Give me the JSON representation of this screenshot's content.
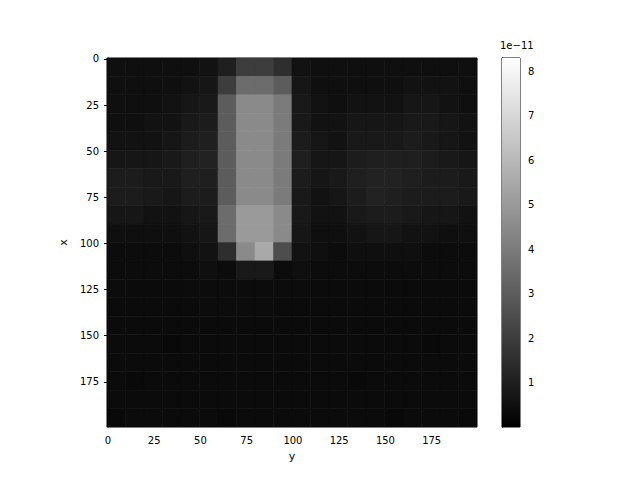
{
  "chart_data": {
    "type": "heatmap",
    "xlabel": "y",
    "ylabel": "x",
    "xlim": [
      -0.5,
      199.5
    ],
    "xticks": [
      0,
      25,
      50,
      75,
      100,
      125,
      150,
      175
    ],
    "ylim": [
      199.5,
      -0.5
    ],
    "yticks": [
      0,
      25,
      50,
      75,
      100,
      125,
      150,
      175
    ],
    "color": "gray",
    "colorbar_lim": [
      0,
      8.3
    ],
    "colorbar_ticks": [
      1,
      2,
      3,
      4,
      5,
      6,
      7,
      8
    ],
    "colorbar_offset_text": "1e−11",
    "heatmap": {
      "y_edges": [
        -0.5,
        9.5,
        19.5,
        29.5,
        39.5,
        49.5,
        59.5,
        69.5,
        79.5,
        89.5,
        99.5,
        109.5,
        119.5,
        129.5,
        139.5,
        149.5,
        159.5,
        169.5,
        179.5,
        189.5,
        199.5
      ],
      "x_edges": [
        -0.5,
        9.5,
        19.5,
        29.5,
        39.5,
        49.5,
        59.5,
        69.5,
        79.5,
        89.5,
        99.5,
        109.5,
        119.5,
        129.5,
        139.5,
        149.5,
        159.5,
        169.5,
        179.5,
        189.5,
        199.5
      ],
      "cells": [
        [
          0.5,
          0.5,
          0.5,
          0.5,
          0.5,
          0.6,
          1.0,
          2.0,
          2.0,
          1.5,
          0.6,
          0.5,
          0.5,
          0.5,
          0.5,
          0.5,
          0.5,
          0.5,
          0.5,
          0.5
        ],
        [
          0.5,
          0.5,
          0.5,
          0.5,
          0.6,
          0.7,
          2.0,
          3.5,
          3.5,
          3.0,
          0.7,
          0.5,
          0.5,
          0.5,
          0.5,
          0.5,
          0.6,
          0.6,
          0.6,
          0.5
        ],
        [
          0.5,
          0.5,
          0.5,
          0.6,
          0.7,
          0.8,
          3.0,
          4.5,
          4.5,
          4.0,
          0.8,
          0.6,
          0.5,
          0.6,
          0.6,
          0.6,
          0.7,
          0.7,
          0.6,
          0.5
        ],
        [
          0.5,
          0.5,
          0.6,
          0.6,
          0.8,
          0.9,
          3.0,
          4.5,
          4.5,
          4.0,
          0.8,
          0.6,
          0.6,
          0.7,
          0.7,
          0.7,
          0.8,
          0.8,
          0.7,
          0.6
        ],
        [
          0.6,
          0.6,
          0.6,
          0.7,
          0.9,
          1.0,
          3.0,
          4.5,
          4.5,
          4.0,
          0.9,
          0.7,
          0.6,
          0.8,
          0.8,
          0.8,
          0.9,
          0.8,
          0.7,
          0.6
        ],
        [
          0.7,
          0.7,
          0.7,
          0.8,
          1.0,
          1.1,
          3.0,
          4.5,
          4.5,
          4.0,
          1.0,
          0.7,
          0.7,
          0.9,
          1.0,
          1.0,
          1.0,
          0.9,
          0.8,
          0.7
        ],
        [
          0.9,
          0.9,
          0.8,
          0.8,
          1.0,
          1.0,
          3.0,
          4.5,
          4.5,
          4.0,
          0.9,
          0.7,
          0.8,
          1.0,
          1.1,
          1.1,
          1.0,
          0.9,
          0.9,
          0.8
        ],
        [
          0.9,
          0.9,
          0.8,
          0.7,
          0.9,
          0.9,
          3.0,
          4.5,
          4.5,
          4.0,
          0.8,
          0.6,
          0.7,
          0.9,
          1.1,
          1.0,
          0.9,
          0.9,
          0.9,
          0.8
        ],
        [
          0.7,
          0.7,
          0.6,
          0.6,
          0.7,
          0.8,
          3.5,
          5.0,
          5.0,
          4.5,
          0.8,
          0.6,
          0.6,
          0.8,
          0.9,
          0.9,
          0.8,
          0.7,
          0.7,
          0.6
        ],
        [
          0.5,
          0.5,
          0.5,
          0.5,
          0.6,
          0.7,
          3.5,
          5.0,
          5.0,
          4.5,
          0.7,
          0.5,
          0.5,
          0.6,
          0.7,
          0.7,
          0.6,
          0.6,
          0.5,
          0.5
        ],
        [
          0.4,
          0.4,
          0.4,
          0.4,
          0.5,
          0.6,
          1.5,
          4.5,
          5.5,
          2.5,
          0.6,
          0.5,
          0.4,
          0.5,
          0.5,
          0.5,
          0.5,
          0.4,
          0.4,
          0.4
        ],
        [
          0.4,
          0.4,
          0.4,
          0.4,
          0.4,
          0.5,
          0.4,
          0.8,
          0.8,
          0.4,
          0.5,
          0.4,
          0.4,
          0.4,
          0.4,
          0.4,
          0.4,
          0.4,
          0.4,
          0.4
        ],
        [
          0.4,
          0.35,
          0.35,
          0.35,
          0.4,
          0.4,
          0.4,
          0.4,
          0.4,
          0.4,
          0.4,
          0.35,
          0.35,
          0.35,
          0.35,
          0.35,
          0.35,
          0.35,
          0.35,
          0.35
        ],
        [
          0.35,
          0.35,
          0.35,
          0.35,
          0.35,
          0.4,
          0.4,
          0.4,
          0.4,
          0.35,
          0.35,
          0.35,
          0.35,
          0.35,
          0.35,
          0.35,
          0.35,
          0.35,
          0.35,
          0.35
        ],
        [
          0.35,
          0.35,
          0.35,
          0.35,
          0.35,
          0.35,
          0.35,
          0.35,
          0.35,
          0.35,
          0.35,
          0.35,
          0.35,
          0.35,
          0.35,
          0.35,
          0.35,
          0.35,
          0.35,
          0.35
        ],
        [
          0.35,
          0.35,
          0.35,
          0.3,
          0.35,
          0.35,
          0.35,
          0.35,
          0.35,
          0.35,
          0.35,
          0.35,
          0.35,
          0.35,
          0.35,
          0.35,
          0.35,
          0.3,
          0.35,
          0.35
        ],
        [
          0.35,
          0.35,
          0.35,
          0.35,
          0.35,
          0.35,
          0.35,
          0.35,
          0.35,
          0.35,
          0.35,
          0.35,
          0.35,
          0.35,
          0.35,
          0.35,
          0.35,
          0.35,
          0.35,
          0.35
        ],
        [
          0.35,
          0.3,
          0.35,
          0.35,
          0.35,
          0.35,
          0.35,
          0.35,
          0.35,
          0.35,
          0.35,
          0.35,
          0.35,
          0.3,
          0.35,
          0.35,
          0.35,
          0.35,
          0.35,
          0.35
        ],
        [
          0.35,
          0.35,
          0.35,
          0.35,
          0.35,
          0.35,
          0.35,
          0.35,
          0.35,
          0.35,
          0.35,
          0.35,
          0.35,
          0.35,
          0.35,
          0.35,
          0.35,
          0.35,
          0.35,
          0.35
        ],
        [
          0.3,
          0.35,
          0.35,
          0.35,
          0.35,
          0.35,
          0.3,
          0.35,
          0.35,
          0.35,
          0.35,
          0.35,
          0.35,
          0.35,
          0.35,
          0.3,
          0.35,
          0.35,
          0.35,
          0.3
        ]
      ]
    }
  }
}
